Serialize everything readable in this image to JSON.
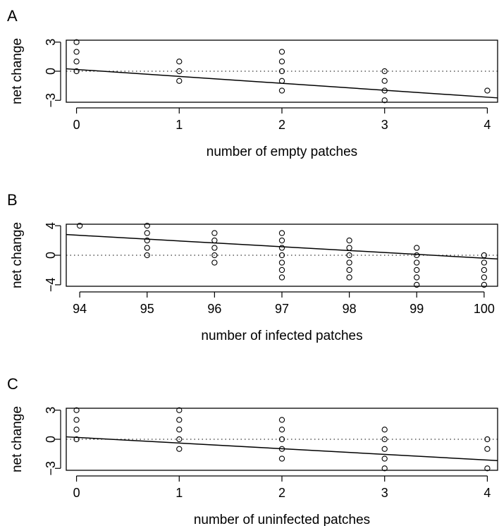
{
  "chart_data": [
    {
      "panel": "A",
      "type": "scatter",
      "xlabel": "number of empty patches",
      "ylabel": "net change",
      "xlim": [
        -0.1,
        4.1
      ],
      "ylim": [
        -3.2,
        3.2
      ],
      "xticks": [
        0,
        1,
        2,
        3,
        4
      ],
      "yticks": [
        -3,
        0,
        3
      ],
      "reference_line_y": 0,
      "fit_line": [
        [
          -0.1,
          0.25
        ],
        [
          4.1,
          -2.75
        ]
      ],
      "points": [
        [
          0,
          3
        ],
        [
          0,
          2
        ],
        [
          0,
          1
        ],
        [
          0,
          0
        ],
        [
          1,
          1
        ],
        [
          1,
          0
        ],
        [
          1,
          -1
        ],
        [
          2,
          2
        ],
        [
          2,
          1
        ],
        [
          2,
          0
        ],
        [
          2,
          -1
        ],
        [
          2,
          -2
        ],
        [
          3,
          0
        ],
        [
          3,
          -1
        ],
        [
          3,
          -2
        ],
        [
          3,
          -3
        ],
        [
          4,
          -2
        ]
      ]
    },
    {
      "panel": "B",
      "type": "scatter",
      "xlabel": "number of infected patches",
      "ylabel": "net change",
      "xlim": [
        93.8,
        100.2
      ],
      "ylim": [
        -4.2,
        4.2
      ],
      "xticks": [
        94,
        95,
        96,
        97,
        98,
        99,
        100
      ],
      "yticks": [
        -4,
        0,
        4
      ],
      "reference_line_y": 0,
      "fit_line": [
        [
          93.8,
          2.8
        ],
        [
          100.2,
          -0.5
        ]
      ],
      "points": [
        [
          94,
          4
        ],
        [
          95,
          4
        ],
        [
          95,
          3
        ],
        [
          95,
          2
        ],
        [
          95,
          1
        ],
        [
          95,
          0
        ],
        [
          96,
          3
        ],
        [
          96,
          2
        ],
        [
          96,
          1
        ],
        [
          96,
          0
        ],
        [
          96,
          -1
        ],
        [
          97,
          3
        ],
        [
          97,
          2
        ],
        [
          97,
          1
        ],
        [
          97,
          0
        ],
        [
          97,
          -1
        ],
        [
          97,
          -2
        ],
        [
          97,
          -3
        ],
        [
          98,
          2
        ],
        [
          98,
          1
        ],
        [
          98,
          0
        ],
        [
          98,
          -1
        ],
        [
          98,
          -2
        ],
        [
          98,
          -3
        ],
        [
          99,
          1
        ],
        [
          99,
          0
        ],
        [
          99,
          -1
        ],
        [
          99,
          -2
        ],
        [
          99,
          -3
        ],
        [
          99,
          -4
        ],
        [
          100,
          0
        ],
        [
          100,
          -1
        ],
        [
          100,
          -2
        ],
        [
          100,
          -3
        ],
        [
          100,
          -4
        ]
      ]
    },
    {
      "panel": "C",
      "type": "scatter",
      "xlabel": "number of uninfected patches",
      "ylabel": "net change",
      "xlim": [
        -0.1,
        4.1
      ],
      "ylim": [
        -3.2,
        3.2
      ],
      "xticks": [
        0,
        1,
        2,
        3,
        4
      ],
      "yticks": [
        -3,
        0,
        3
      ],
      "reference_line_y": 0,
      "fit_line": [
        [
          -0.1,
          0.25
        ],
        [
          4.1,
          -2.2
        ]
      ],
      "points": [
        [
          0,
          3
        ],
        [
          0,
          2
        ],
        [
          0,
          1
        ],
        [
          0,
          0
        ],
        [
          1,
          3
        ],
        [
          1,
          2
        ],
        [
          1,
          1
        ],
        [
          1,
          0
        ],
        [
          1,
          -1
        ],
        [
          2,
          2
        ],
        [
          2,
          1
        ],
        [
          2,
          0
        ],
        [
          2,
          -1
        ],
        [
          2,
          -2
        ],
        [
          3,
          1
        ],
        [
          3,
          0
        ],
        [
          3,
          -1
        ],
        [
          3,
          -2
        ],
        [
          3,
          -3
        ],
        [
          4,
          0
        ],
        [
          4,
          -1
        ],
        [
          4,
          -3
        ]
      ]
    }
  ]
}
